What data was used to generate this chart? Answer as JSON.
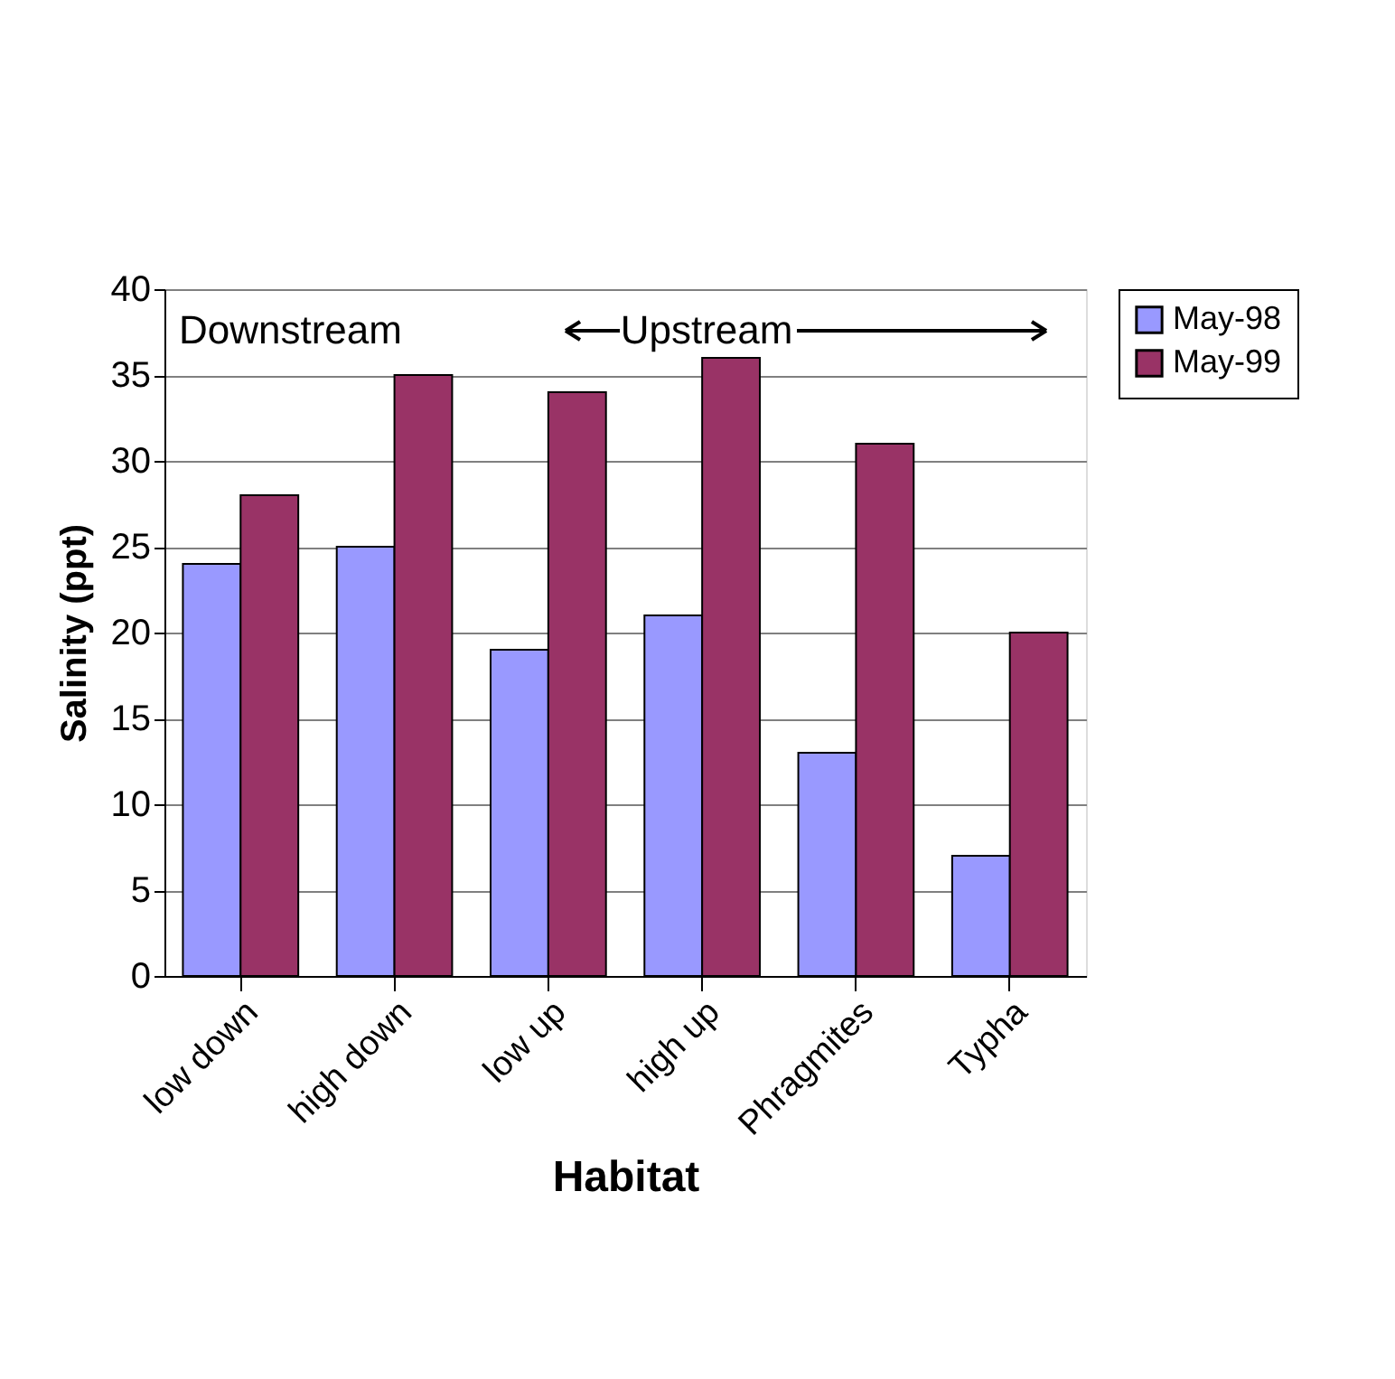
{
  "chart_data": {
    "type": "bar",
    "xlabel": "Habitat",
    "ylabel": "Salinity (ppt)",
    "categories": [
      "low down",
      "high down",
      "low up",
      "high up",
      "Phragmites",
      "Typha"
    ],
    "series": [
      {
        "name": "May-98",
        "color": "#9999ff",
        "values": [
          24,
          25,
          19,
          21,
          13,
          7
        ]
      },
      {
        "name": "May-99",
        "color": "#993366",
        "values": [
          28,
          35,
          34,
          36,
          31,
          20
        ]
      }
    ],
    "ylim": [
      0,
      40
    ],
    "yticks": [
      0,
      5,
      10,
      15,
      20,
      25,
      30,
      35,
      40
    ],
    "grid": "y",
    "legend": "right",
    "annotations": [
      "Downstream",
      "Upstream"
    ]
  }
}
